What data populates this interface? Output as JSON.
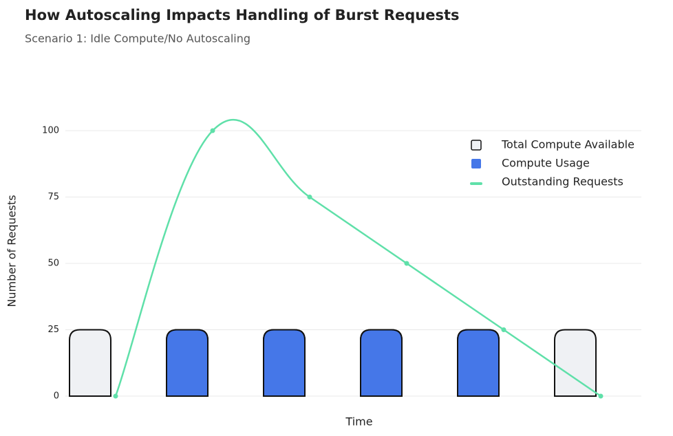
{
  "chart_data": {
    "type": "bar",
    "title": "How Autoscaling Impacts Handling of Burst Requests",
    "subtitle": "Scenario 1: Idle Compute/No Autoscaling",
    "xlabel": "Time",
    "ylabel": "Number of Requests",
    "categories": [
      null,
      null,
      null,
      null,
      null,
      null
    ],
    "series": [
      {
        "name": "Total Compute Available",
        "type": "bar",
        "color": "#eff1f4",
        "values": [
          25,
          25,
          25,
          25,
          25,
          25
        ]
      },
      {
        "name": "Compute Usage",
        "type": "bar",
        "color": "#4577e8",
        "values": [
          0,
          25,
          25,
          25,
          25,
          0
        ]
      },
      {
        "name": "Outstanding Requests",
        "type": "line",
        "color": "#5fe0a9",
        "values": [
          0,
          100,
          75,
          50,
          25,
          0
        ]
      }
    ],
    "ylim": [
      0,
      100
    ],
    "yticks": [
      0,
      25,
      50,
      75,
      100
    ],
    "grid": true,
    "legend": "upper right"
  }
}
